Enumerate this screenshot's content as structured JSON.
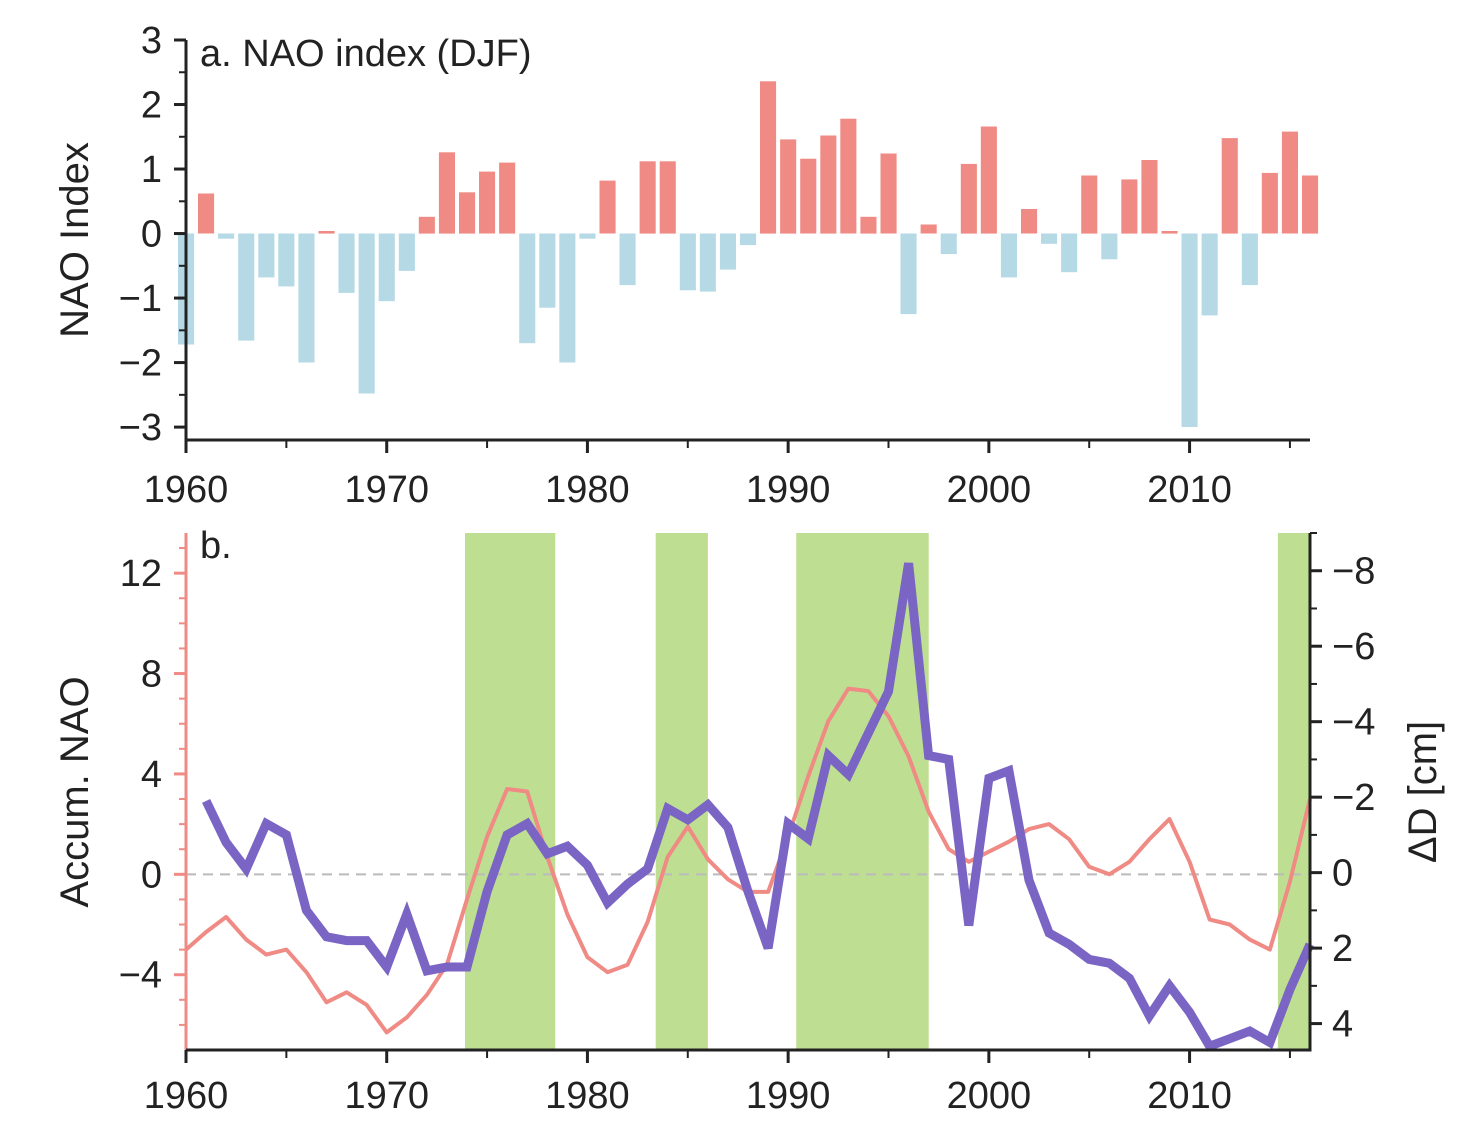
{
  "colors": {
    "positive_bar": "#f08a84",
    "negative_bar": "#b5dae6",
    "accum_line": "#f08a84",
    "delta_line": "#7a64c4",
    "shade": "#bedf92",
    "zero_line": "#bbbbbb",
    "axis": "#222222",
    "left_axis_b": "#f08a84"
  },
  "chart_data": [
    {
      "type": "bar",
      "title": "a. NAO index (DJF)",
      "xlabel": "",
      "ylabel": "NAO Index",
      "xlim": [
        1960,
        2016
      ],
      "ylim": [
        -3.2,
        3
      ],
      "xticks": [
        1960,
        1970,
        1980,
        1990,
        2000,
        2010
      ],
      "yticks": [
        3,
        2,
        1,
        0,
        -1,
        -2,
        -3
      ],
      "ytick_labels": [
        "3",
        "2",
        "1",
        "0",
        "−1",
        "−2",
        "−3"
      ],
      "x": [
        1960,
        1961,
        1962,
        1963,
        1964,
        1965,
        1966,
        1967,
        1968,
        1969,
        1970,
        1971,
        1972,
        1973,
        1974,
        1975,
        1976,
        1977,
        1978,
        1979,
        1980,
        1981,
        1982,
        1983,
        1984,
        1985,
        1986,
        1987,
        1988,
        1989,
        1990,
        1991,
        1992,
        1993,
        1994,
        1995,
        1996,
        1997,
        1998,
        1999,
        2000,
        2001,
        2002,
        2003,
        2004,
        2005,
        2006,
        2007,
        2008,
        2009,
        2010,
        2011,
        2012,
        2013,
        2014,
        2015,
        2016
      ],
      "values": [
        -1.72,
        0.62,
        -0.08,
        -1.66,
        -0.68,
        -0.82,
        -2.0,
        0.04,
        -0.92,
        -2.48,
        -1.05,
        -0.58,
        0.26,
        1.26,
        0.64,
        0.96,
        1.1,
        -1.7,
        -1.15,
        -2.0,
        -0.08,
        0.82,
        -0.8,
        1.12,
        1.12,
        -0.88,
        -0.9,
        -0.56,
        -0.18,
        2.36,
        1.46,
        1.16,
        1.52,
        1.78,
        0.26,
        1.24,
        -1.25,
        0.14,
        -0.32,
        1.08,
        1.66,
        -0.68,
        0.38,
        -0.16,
        -0.6,
        0.9,
        -0.4,
        0.84,
        1.14,
        0.04,
        -3.0,
        -1.27,
        1.48,
        -0.8,
        0.94,
        1.58,
        0.9
      ]
    },
    {
      "type": "line",
      "title": "b.",
      "xlabel": "",
      "ylabel": "Accum. NAO",
      "ylabel_right": "ΔD [cm]",
      "xlim": [
        1960,
        2016
      ],
      "ylim": [
        -7,
        13.6
      ],
      "ylim_right": [
        4.7,
        -9.0
      ],
      "xticks": [
        1960,
        1970,
        1980,
        1990,
        2000,
        2010
      ],
      "yticks": [
        12,
        8,
        4,
        0,
        -4
      ],
      "ytick_labels": [
        "12",
        "8",
        "4",
        "0",
        "−4"
      ],
      "yticks_right": [
        -8,
        -6,
        -4,
        -2,
        0,
        2,
        4
      ],
      "ytick_labels_right": [
        "−8",
        "−6",
        "−4",
        "−2",
        "0",
        "2",
        "4"
      ],
      "zero_line": 0,
      "shaded_periods": [
        [
          1973.9,
          1978.4
        ],
        [
          1983.4,
          1986.0
        ],
        [
          1990.4,
          1997.0
        ],
        [
          2014.4,
          2016.0
        ]
      ],
      "series": [
        {
          "axis": "left",
          "x": [
            1960,
            1961,
            1962,
            1963,
            1964,
            1965,
            1966,
            1967,
            1968,
            1969,
            1970,
            1971,
            1972,
            1973,
            1974,
            1975,
            1976,
            1977,
            1978,
            1979,
            1980,
            1981,
            1982,
            1983,
            1984,
            1985,
            1986,
            1987,
            1988,
            1989,
            1990,
            1991,
            1992,
            1993,
            1994,
            1995,
            1996,
            1997,
            1998,
            1999,
            2000,
            2001,
            2002,
            2003,
            2004,
            2005,
            2006,
            2007,
            2008,
            2009,
            2010,
            2011,
            2012,
            2013,
            2014,
            2015,
            2016
          ],
          "values": [
            -3.0,
            -2.3,
            -1.7,
            -2.6,
            -3.2,
            -3.0,
            -3.9,
            -5.1,
            -4.7,
            -5.2,
            -6.3,
            -5.7,
            -4.8,
            -3.6,
            -1.0,
            1.5,
            3.4,
            3.3,
            0.7,
            -1.6,
            -3.3,
            -3.9,
            -3.6,
            -1.9,
            0.7,
            1.9,
            0.6,
            -0.2,
            -0.7,
            -0.7,
            1.5,
            3.9,
            6.1,
            7.4,
            7.3,
            6.3,
            4.7,
            2.5,
            1.0,
            0.5,
            0.9,
            1.3,
            1.8,
            2.0,
            1.4,
            0.3,
            0.0,
            0.5,
            1.4,
            2.2,
            0.5,
            -1.8,
            -2.0,
            -2.6,
            -3.0,
            -0.3,
            3.0
          ]
        },
        {
          "axis": "right",
          "x": [
            1961,
            1962,
            1963,
            1964,
            1965,
            1966,
            1967,
            1968,
            1969,
            1970,
            1971,
            1972,
            1973,
            1974,
            1975,
            1976,
            1977,
            1978,
            1979,
            1980,
            1981,
            1982,
            1983,
            1984,
            1985,
            1986,
            1987,
            1988,
            1989,
            1990,
            1991,
            1992,
            1993,
            1994,
            1995,
            1996,
            1997,
            1998,
            1999,
            2000,
            2001,
            2002,
            2003,
            2004,
            2005,
            2006,
            2007,
            2008,
            2009,
            2010,
            2011,
            2012,
            2013,
            2014,
            2015,
            2016
          ],
          "values": [
            -1.9,
            -0.8,
            -0.1,
            -1.3,
            -1.0,
            1.0,
            1.7,
            1.8,
            1.8,
            2.5,
            1.1,
            2.6,
            2.5,
            2.5,
            0.5,
            -1.0,
            -1.3,
            -0.5,
            -0.7,
            -0.2,
            0.8,
            0.3,
            -0.1,
            -1.7,
            -1.4,
            -1.8,
            -1.2,
            0.5,
            2.0,
            -1.3,
            -0.9,
            -3.1,
            -2.6,
            -3.7,
            -4.8,
            -8.2,
            -3.1,
            -3.0,
            1.4,
            -2.5,
            -2.7,
            0.2,
            1.6,
            1.9,
            2.3,
            2.4,
            2.8,
            3.8,
            3.0,
            3.7,
            4.6,
            4.4,
            4.2,
            4.5,
            3.1,
            1.9
          ]
        }
      ]
    }
  ]
}
